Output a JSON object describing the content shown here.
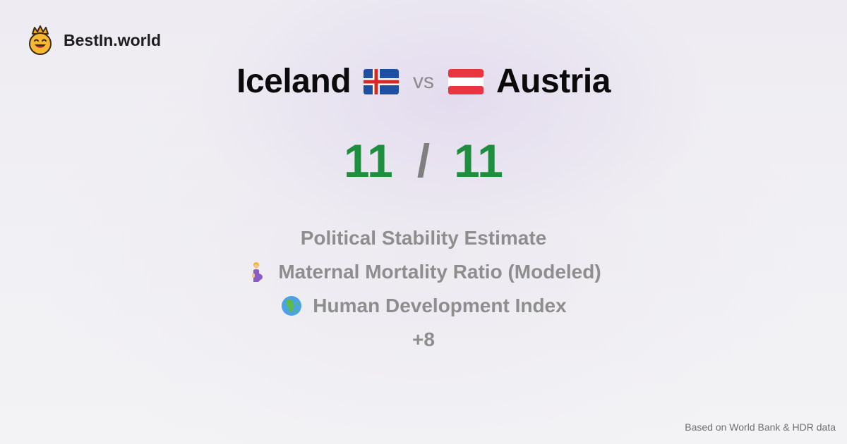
{
  "brand": {
    "name": "BestIn.world",
    "logo_icon": "crowned-smiley-icon"
  },
  "comparison": {
    "left_country": "Iceland",
    "left_flag_icon": "iceland-flag-icon",
    "vs_label": "vs",
    "right_country": "Austria",
    "right_flag_icon": "austria-flag-icon"
  },
  "score": {
    "left": "11",
    "separator": "/",
    "right": "11",
    "color": "#1e8f3e"
  },
  "metrics": [
    {
      "label": "Political Stability Estimate",
      "icon": ""
    },
    {
      "label": "Maternal Mortality Ratio (Modeled)",
      "icon": "pregnant-woman-icon"
    },
    {
      "label": "Human Development Index",
      "icon": "globe-africa-icon"
    }
  ],
  "more_label": "+8",
  "footer": {
    "source": "Based on World Bank & HDR data"
  }
}
